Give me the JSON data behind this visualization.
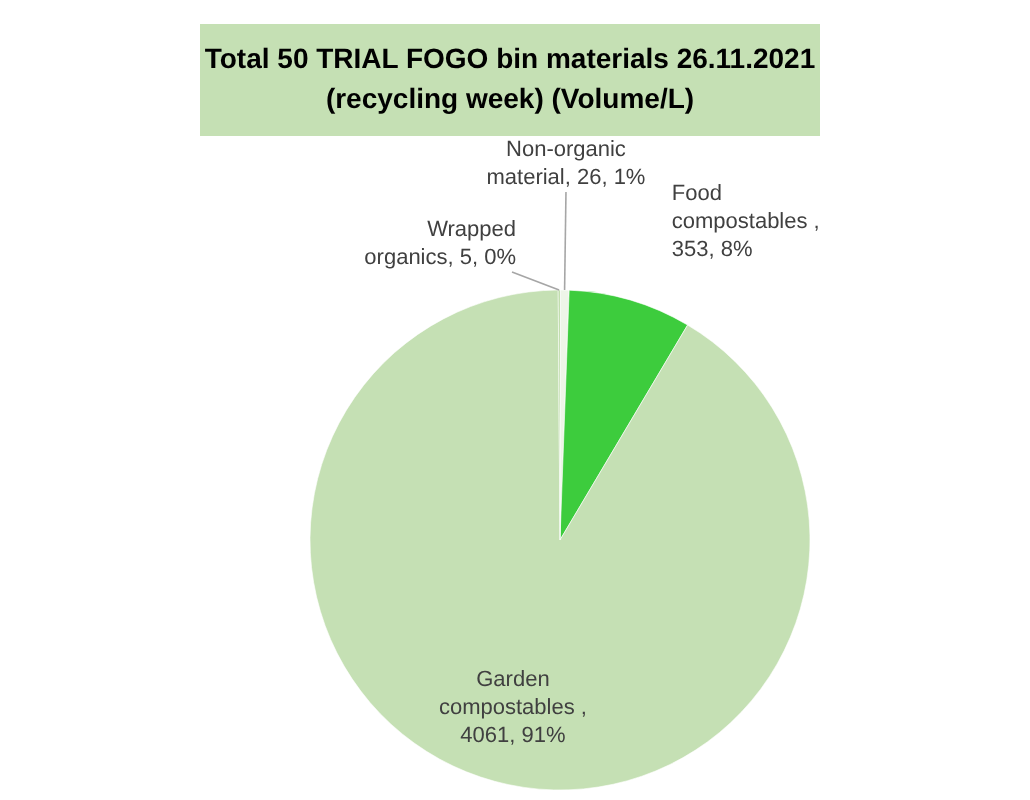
{
  "chart_data": {
    "type": "pie",
    "title": "Total 50 TRIAL FOGO bin materials 26.11.2021 (recycling week) (Volume/L)",
    "categories": [
      "Non-organic material",
      "Food compostables",
      "Garden compostables",
      "Wrapped organics"
    ],
    "values": [
      26,
      353,
      4061,
      5
    ],
    "value_labels": [
      ", 26, 1%",
      " , 353, 8%",
      " , 4061, 91%",
      ", 5, 0%"
    ],
    "colors": [
      "#eef5e8",
      "#3dcc3d",
      "#c5e0b4",
      "#a9d18e"
    ]
  }
}
